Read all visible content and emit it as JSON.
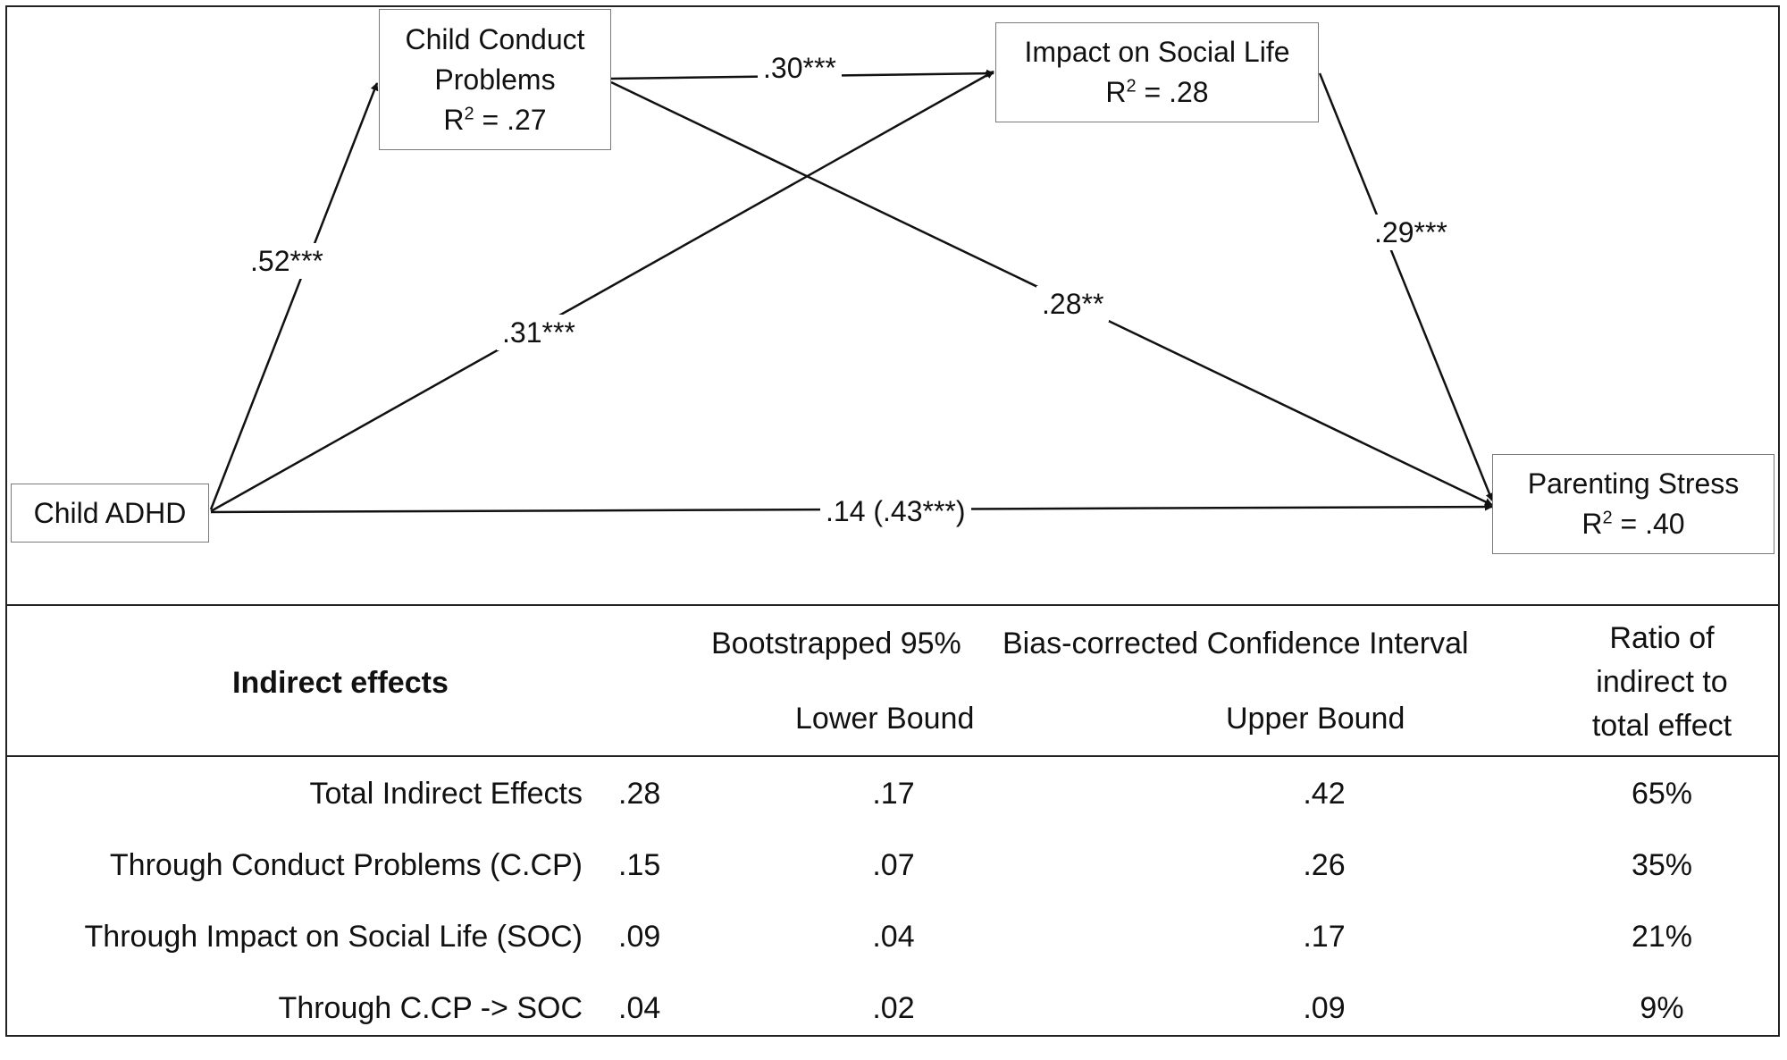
{
  "diagram": {
    "nodes": {
      "adhd": {
        "label": "Child ADHD"
      },
      "conduct": {
        "line1": "Child Conduct",
        "line2": "Problems",
        "r2_prefix": "R",
        "r2_sup": "2",
        "r2_value": " = .27"
      },
      "social": {
        "line1": "Impact on Social Life",
        "r2_prefix": "R",
        "r2_sup": "2",
        "r2_value": " = .28"
      },
      "stress": {
        "line1": "Parenting Stress",
        "r2_prefix": "R",
        "r2_sup": "2",
        "r2_value": " = .40"
      }
    },
    "edges": {
      "adhd_conduct": ".52***",
      "conduct_social": ".30***",
      "adhd_social": ".31***",
      "conduct_stress": ".28**",
      "social_stress": ".29***",
      "adhd_stress": ".14 (.43***)"
    }
  },
  "table": {
    "headers": {
      "indirect": "Indirect effects",
      "ci_left": "Bootstrapped 95%",
      "ci_right": "Bias-corrected Confidence Interval",
      "lower": "Lower Bound",
      "upper": "Upper Bound",
      "ratio1": "Ratio of",
      "ratio2": "indirect to",
      "ratio3": "total effect"
    },
    "rows": [
      {
        "label": "Total Indirect Effects",
        "estimate": ".28",
        "lower": ".17",
        "upper": ".42",
        "ratio": "65%"
      },
      {
        "label": "Through Conduct Problems (C.CP)",
        "estimate": ".15",
        "lower": ".07",
        "upper": ".26",
        "ratio": "35%"
      },
      {
        "label": "Through Impact on Social Life (SOC)",
        "estimate": ".09",
        "lower": ".04",
        "upper": ".17",
        "ratio": "21%"
      },
      {
        "label": "Through C.CP -> SOC",
        "estimate": ".04",
        "lower": ".02",
        "upper": ".09",
        "ratio": "9%"
      }
    ]
  }
}
